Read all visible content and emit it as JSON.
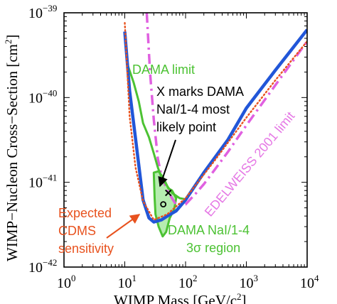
{
  "chart_data": {
    "type": "line",
    "xlabel": "WIMP Mass [GeV/c",
    "xlabel_sup": "2",
    "xlabel_end": "]",
    "ylabel": "WIMP−Nucleon Cross−Section [cm",
    "ylabel_sup": "2",
    "ylabel_end": "]",
    "x_scale": "log",
    "y_scale": "log",
    "xlim": [
      1,
      10000
    ],
    "ylim": [
      1e-42,
      1e-39
    ],
    "x_ticks": [
      {
        "value": 1,
        "base": "10",
        "exp": "0"
      },
      {
        "value": 10,
        "base": "10",
        "exp": "1"
      },
      {
        "value": 100,
        "base": "10",
        "exp": "2"
      },
      {
        "value": 1000,
        "base": "10",
        "exp": "3"
      },
      {
        "value": 10000,
        "base": "10",
        "exp": "4"
      }
    ],
    "y_ticks": [
      {
        "value": 1e-42,
        "base": "10",
        "exp": "−42"
      },
      {
        "value": 1e-41,
        "base": "10",
        "exp": "−41"
      },
      {
        "value": 1e-40,
        "base": "10",
        "exp": "−40"
      },
      {
        "value": 1e-39,
        "base": "10",
        "exp": "−39"
      }
    ],
    "series": [
      {
        "key": "cdms",
        "color": "#e8521e",
        "style": "dotted",
        "x": [
          10,
          12,
          15,
          20,
          30,
          50,
          100,
          300,
          1000,
          3000,
          10000
        ],
        "y": [
          7.6e-40,
          6e-41,
          1.5e-41,
          6e-42,
          3.6e-42,
          4.2e-42,
          6.5e-42,
          1.8e-41,
          5.8e-41,
          1.6e-40,
          4.6e-40
        ]
      },
      {
        "key": "cdms_blue",
        "color": "#2156d8",
        "style": "solid",
        "x": [
          10,
          12,
          15,
          20,
          25,
          30,
          40,
          50,
          70,
          100,
          200,
          500,
          1000,
          3000,
          10000
        ],
        "y": [
          6e-40,
          1.2e-40,
          3.3e-41,
          6.2e-42,
          3.8e-42,
          3.4e-42,
          3.6e-42,
          4e-42,
          4.6e-42,
          6.2e-42,
          1.3e-41,
          3.2e-41,
          7.5e-41,
          2.1e-40,
          6.3e-40
        ]
      },
      {
        "key": "edelweiss",
        "name": "EDELWEISS 2001 limit",
        "color": "#e060e0",
        "style": "dashdot",
        "x": [
          23,
          26,
          30,
          35,
          40,
          50,
          70,
          100,
          150,
          200,
          300,
          500,
          1000,
          3000,
          10000
        ],
        "y": [
          1e-39,
          2e-40,
          5.5e-41,
          1.9e-41,
          1.2e-41,
          8e-42,
          5.4e-42,
          5.5e-42,
          7.5e-42,
          9.5e-42,
          1.4e-41,
          2.3e-41,
          4.7e-41,
          1.4e-40,
          4.6e-40
        ]
      },
      {
        "key": "dama_limit",
        "name": "DAMA limit",
        "color": "#4cc233",
        "style": "solid",
        "x": [
          11,
          14,
          17,
          20,
          25,
          30,
          35,
          40,
          50,
          60,
          80,
          100
        ],
        "y": [
          2.5e-40,
          1.5e-40,
          9e-41,
          5e-41,
          3.4e-41,
          2.2e-41,
          1.5e-41,
          1.15e-41,
          9e-42,
          7.5e-42,
          6.5e-42,
          6.3e-42
        ]
      }
    ],
    "regions": [
      {
        "key": "dama_region",
        "name": "DAMA NaI/1-4 3σ region",
        "color": "#4cc233",
        "fill": "#b6ecb0",
        "x": [
          30,
          36,
          44,
          52,
          60,
          70,
          65,
          55,
          48,
          42,
          36,
          32,
          31,
          30
        ],
        "y": [
          1.3e-41,
          1.35e-41,
          1.1e-41,
          8.5e-42,
          8e-42,
          6.5e-42,
          4.8e-42,
          3.8e-42,
          2.6e-42,
          2.3e-42,
          3e-42,
          4.2e-42,
          6.5e-42,
          1.3e-41
        ]
      }
    ],
    "points": [
      {
        "key": "dama_best",
        "marker": "x",
        "x": 52,
        "y": 7.5e-42
      },
      {
        "key": "dama_circle",
        "marker": "o",
        "x": 43,
        "y": 5.5e-42
      }
    ],
    "annotations": [
      {
        "key": "dama_limit_label",
        "lines": [
          "DAMA limit"
        ],
        "color": "#4cc233"
      },
      {
        "key": "x_marks_label",
        "lines": [
          "X marks DAMA",
          "NaI/1-4 most",
          "likely point"
        ],
        "color": "#000000"
      },
      {
        "key": "expected_label",
        "lines": [
          "Expected",
          "CDMS",
          "sensitivity"
        ],
        "color": "#e8521e"
      },
      {
        "key": "region_label",
        "lines": [
          "DAMA NaI/1-4",
          "3σ region"
        ],
        "color": "#4cc233"
      },
      {
        "key": "edelweiss_label",
        "lines": [
          "EDELWEISS 2001 limit"
        ],
        "color": "#e060e0"
      }
    ]
  }
}
